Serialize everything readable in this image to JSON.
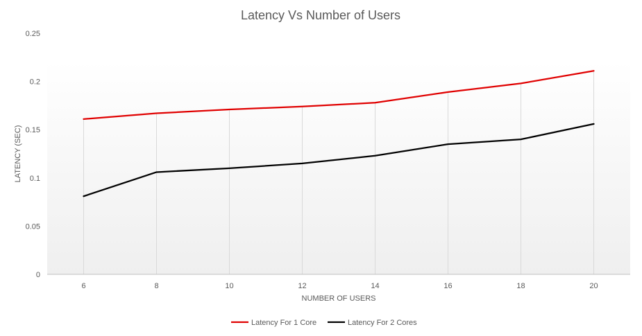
{
  "chart_data": {
    "type": "line",
    "title": "Latency Vs Number of Users",
    "xlabel": "NUMBER OF USERS",
    "ylabel": "LATENCY (SEC)",
    "x": [
      6,
      8,
      10,
      12,
      14,
      16,
      18,
      20
    ],
    "x_tick_labels": [
      "6",
      "8",
      "10",
      "12",
      "14",
      "16",
      "18",
      "20"
    ],
    "ylim": [
      0,
      0.25
    ],
    "y_ticks": [
      0,
      0.05,
      0.1,
      0.15,
      0.2,
      0.25
    ],
    "y_tick_labels": [
      "0",
      "0.05",
      "0.1",
      "0.15",
      "0.2",
      "0.25"
    ],
    "grid": "vertical",
    "legend_position": "bottom",
    "series": [
      {
        "name": "Latency For 1 Core",
        "color": "#e00000",
        "values": [
          0.161,
          0.167,
          0.171,
          0.174,
          0.178,
          0.189,
          0.198,
          0.211
        ]
      },
      {
        "name": "Latency For 2 Cores",
        "color": "#000000",
        "values": [
          0.081,
          0.106,
          0.11,
          0.115,
          0.123,
          0.135,
          0.14,
          0.156
        ]
      }
    ]
  }
}
